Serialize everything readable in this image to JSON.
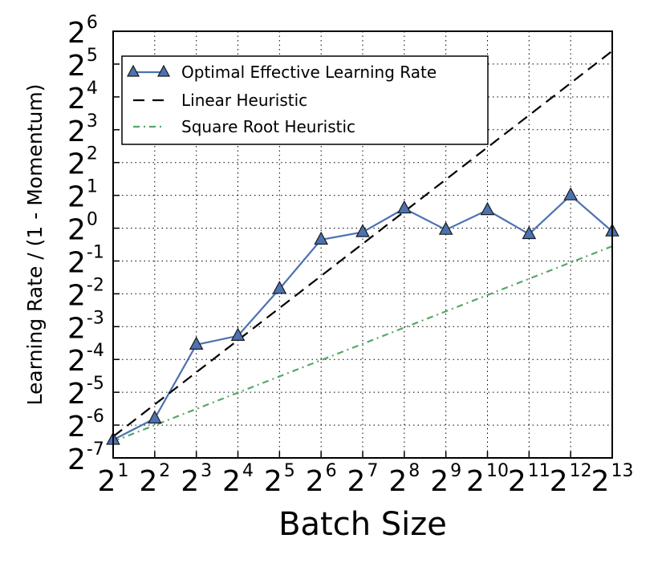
{
  "chart_data": {
    "type": "line",
    "xlabel": "Batch Size",
    "ylabel": "Learning Rate / (1 - Momentum)",
    "scale": "log2",
    "x_log2_range": [
      1,
      13
    ],
    "y_log2_range": [
      -7,
      6
    ],
    "grid": true,
    "legend_placement": "top-left",
    "x_ticks": [
      {
        "base": "2",
        "exp": "1"
      },
      {
        "base": "2",
        "exp": "2"
      },
      {
        "base": "2",
        "exp": "3"
      },
      {
        "base": "2",
        "exp": "4"
      },
      {
        "base": "2",
        "exp": "5"
      },
      {
        "base": "2",
        "exp": "6"
      },
      {
        "base": "2",
        "exp": "7"
      },
      {
        "base": "2",
        "exp": "8"
      },
      {
        "base": "2",
        "exp": "9"
      },
      {
        "base": "2",
        "exp": "10"
      },
      {
        "base": "2",
        "exp": "11"
      },
      {
        "base": "2",
        "exp": "12"
      },
      {
        "base": "2",
        "exp": "13"
      }
    ],
    "y_ticks": [
      {
        "base": "2",
        "exp": "-7"
      },
      {
        "base": "2",
        "exp": "-6"
      },
      {
        "base": "2",
        "exp": "-5"
      },
      {
        "base": "2",
        "exp": "-4"
      },
      {
        "base": "2",
        "exp": "-3"
      },
      {
        "base": "2",
        "exp": "-2"
      },
      {
        "base": "2",
        "exp": "-1"
      },
      {
        "base": "2",
        "exp": "0"
      },
      {
        "base": "2",
        "exp": "1"
      },
      {
        "base": "2",
        "exp": "2"
      },
      {
        "base": "2",
        "exp": "3"
      },
      {
        "base": "2",
        "exp": "4"
      },
      {
        "base": "2",
        "exp": "5"
      },
      {
        "base": "2",
        "exp": "6"
      }
    ],
    "series": [
      {
        "name": "Optimal Effective Learning Rate",
        "style": "solid-triangle",
        "color": "#4c72b0",
        "x_log2": [
          1,
          2,
          3,
          4,
          5,
          6,
          7,
          8,
          9,
          10,
          11,
          12,
          13
        ],
        "y_log2": [
          -6.45,
          -5.8,
          -3.55,
          -3.28,
          -1.85,
          -0.35,
          -0.12,
          0.6,
          -0.05,
          0.55,
          -0.18,
          1.0,
          -0.1
        ]
      },
      {
        "name": "Linear Heuristic",
        "style": "dashed",
        "color": "#000000",
        "x_log2": [
          1,
          13
        ],
        "y_log2": [
          -6.35,
          5.4
        ]
      },
      {
        "name": "Square Root Heuristic",
        "style": "dashdot",
        "color": "#55a868",
        "x_log2": [
          1,
          13
        ],
        "y_log2": [
          -6.5,
          -0.55
        ]
      }
    ]
  }
}
